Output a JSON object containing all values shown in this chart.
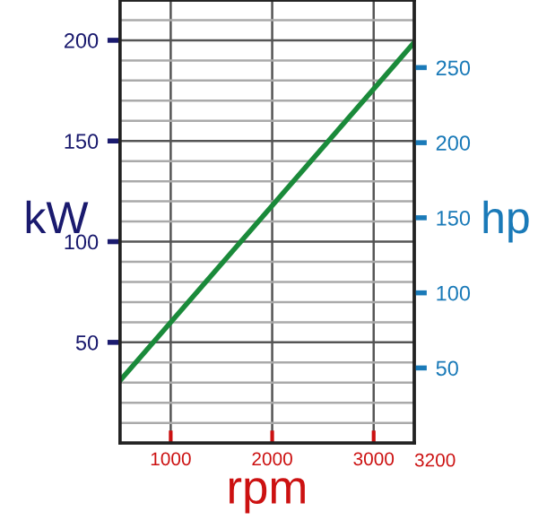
{
  "chart_data": {
    "type": "line",
    "xlabel": "rpm",
    "ylabel": "kW",
    "y2label": "hp",
    "x": [
      500,
      3400
    ],
    "series": [
      {
        "color": "#1a8a3a",
        "values": [
          31,
          199
        ]
      }
    ],
    "xlim": [
      500,
      3400
    ],
    "xticks": [
      1000,
      2000,
      3000
    ],
    "annotations": [
      "3200"
    ],
    "ylim": [
      0,
      220
    ],
    "yticks": [
      50,
      100,
      150,
      200
    ],
    "y2lim": [
      0,
      295
    ],
    "y2ticks": [
      50,
      100,
      150,
      200,
      250
    ],
    "grid": true,
    "marker": "none",
    "line_style": "solid"
  }
}
